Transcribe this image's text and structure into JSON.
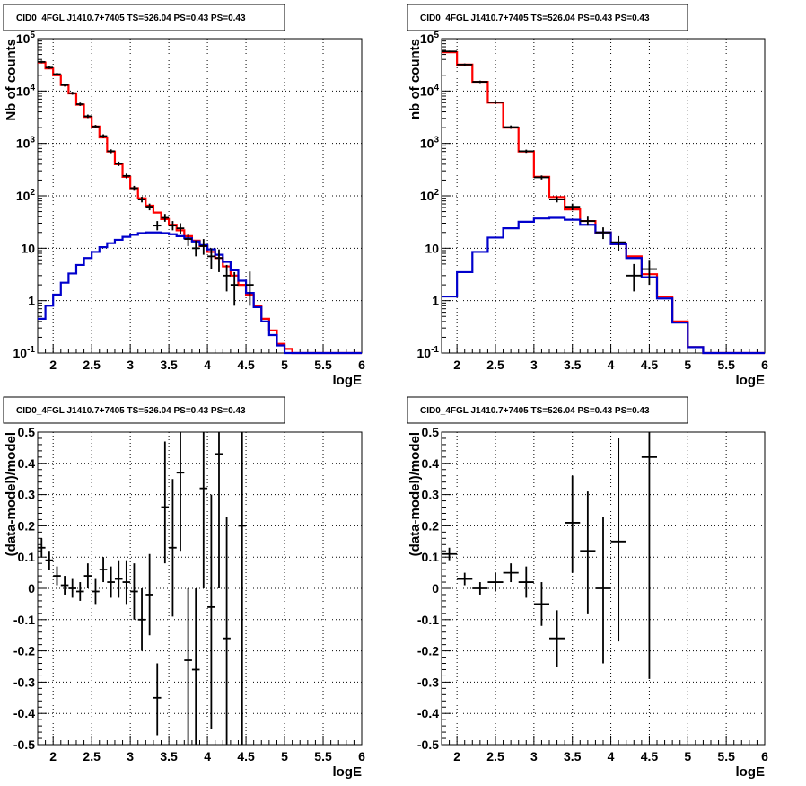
{
  "colors": {
    "data": "#000000",
    "total_model": "#ff0000",
    "source_model": "#0000cc",
    "grid": "#000000",
    "background": "#ffffff"
  },
  "chart_data": [
    {
      "type": "line",
      "title": "CID0_4FGL J1410.7+7405 TS=526.04 PS=0.43 PS=0.43",
      "xlabel": "logE",
      "ylabel": "Nb of counts",
      "xscale": "linear",
      "yscale": "log",
      "xlim": [
        1.8,
        6.0
      ],
      "ylim": [
        0.1,
        100000
      ],
      "grid": true,
      "xticks": [
        "2",
        "2.5",
        "3",
        "3.5",
        "4",
        "4.5",
        "5",
        "5.5",
        "6"
      ],
      "yticks": [
        {
          "value": 0.1,
          "base": "10",
          "exp": "-1"
        },
        {
          "value": 1,
          "label": "1"
        },
        {
          "value": 10,
          "label": "10"
        },
        {
          "value": 100,
          "base": "10",
          "exp": "2"
        },
        {
          "value": 1000,
          "base": "10",
          "exp": "3"
        },
        {
          "value": 10000,
          "base": "10",
          "exp": "4"
        },
        {
          "value": 100000,
          "base": "10",
          "exp": "5"
        }
      ],
      "bin_edges": [
        1.8,
        1.9,
        2.0,
        2.1,
        2.2,
        2.3,
        2.4,
        2.5,
        2.6,
        2.7,
        2.8,
        2.9,
        3.0,
        3.1,
        3.2,
        3.3,
        3.4,
        3.5,
        3.6,
        3.7,
        3.8,
        3.9,
        4.0,
        4.1,
        4.2,
        4.3,
        4.4,
        4.5,
        4.6,
        4.7,
        4.8,
        4.9,
        5.0,
        5.1,
        6.0
      ],
      "series": [
        {
          "role": "total_model",
          "values": [
            35000,
            27000,
            20000,
            13000,
            9000,
            5500,
            3200,
            2100,
            1300,
            700,
            400,
            230,
            140,
            90,
            65,
            48,
            36,
            28,
            22,
            17,
            14,
            11,
            8.5,
            6.5,
            4.5,
            3,
            2,
            1.3,
            0.8,
            0.45,
            0.27,
            0.15,
            0.12,
            0.1
          ]
        },
        {
          "role": "source_model",
          "values": [
            0.45,
            0.8,
            1.3,
            2.2,
            3.3,
            4.8,
            6.5,
            8.5,
            10.5,
            12.5,
            14.5,
            16.5,
            18,
            19.5,
            20,
            20,
            19.5,
            18.5,
            17,
            15.5,
            13.5,
            11.5,
            9.5,
            7.5,
            5.5,
            3.8,
            2.4,
            1.4,
            0.75,
            0.4,
            0.22,
            0.14,
            0.1,
            0.1
          ]
        },
        {
          "role": "data",
          "points": [
            {
              "x": 1.85,
              "y": 36000,
              "lo": 34000,
              "hi": 38000
            },
            {
              "x": 1.95,
              "y": 28000,
              "lo": 26500,
              "hi": 29500
            },
            {
              "x": 2.05,
              "y": 21000,
              "lo": 19800,
              "hi": 22200
            },
            {
              "x": 2.15,
              "y": 13000,
              "lo": 12200,
              "hi": 13800
            },
            {
              "x": 2.25,
              "y": 9100,
              "lo": 8500,
              "hi": 9700
            },
            {
              "x": 2.35,
              "y": 5600,
              "lo": 5200,
              "hi": 6000
            },
            {
              "x": 2.45,
              "y": 3300,
              "lo": 3050,
              "hi": 3550
            },
            {
              "x": 2.55,
              "y": 2100,
              "lo": 1950,
              "hi": 2250
            },
            {
              "x": 2.65,
              "y": 1380,
              "lo": 1270,
              "hi": 1490
            },
            {
              "x": 2.75,
              "y": 710,
              "lo": 650,
              "hi": 770
            },
            {
              "x": 2.85,
              "y": 410,
              "lo": 370,
              "hi": 450
            },
            {
              "x": 2.95,
              "y": 240,
              "lo": 215,
              "hi": 265
            },
            {
              "x": 3.05,
              "y": 140,
              "lo": 125,
              "hi": 155
            },
            {
              "x": 3.15,
              "y": 85,
              "lo": 75,
              "hi": 96
            },
            {
              "x": 3.25,
              "y": 62,
              "lo": 53,
              "hi": 71
            },
            {
              "x": 3.35,
              "y": 27,
              "lo": 22,
              "hi": 33
            },
            {
              "x": 3.45,
              "y": 38,
              "lo": 32,
              "hi": 45
            },
            {
              "x": 3.55,
              "y": 27,
              "lo": 22,
              "hi": 33
            },
            {
              "x": 3.65,
              "y": 24,
              "lo": 19,
              "hi": 30
            },
            {
              "x": 3.75,
              "y": 15,
              "lo": 11,
              "hi": 19
            },
            {
              "x": 3.85,
              "y": 10,
              "lo": 7,
              "hi": 14
            },
            {
              "x": 3.95,
              "y": 11,
              "lo": 7.5,
              "hi": 15
            },
            {
              "x": 4.05,
              "y": 7,
              "lo": 4,
              "hi": 10
            },
            {
              "x": 4.15,
              "y": 6.5,
              "lo": 3.5,
              "hi": 9.5
            },
            {
              "x": 4.25,
              "y": 3,
              "lo": 1.5,
              "hi": 4.8
            },
            {
              "x": 4.35,
              "y": 2,
              "lo": 0.8,
              "hi": 3.5
            },
            {
              "x": 4.55,
              "y": 2,
              "lo": 0.8,
              "hi": 3.6
            }
          ]
        }
      ]
    },
    {
      "type": "line",
      "title": "CID0_4FGL J1410.7+7405 TS=526.04 PS=0.43 PS=0.43",
      "xlabel": "logE",
      "ylabel": "nb of counts",
      "xscale": "linear",
      "yscale": "log",
      "xlim": [
        1.8,
        6.0
      ],
      "ylim": [
        0.1,
        100000
      ],
      "grid": true,
      "xticks": [
        "2",
        "2.5",
        "3",
        "3.5",
        "4",
        "4.5",
        "5",
        "5.5",
        "6"
      ],
      "yticks": [
        {
          "value": 0.1,
          "base": "10",
          "exp": "-1"
        },
        {
          "value": 1,
          "label": "1"
        },
        {
          "value": 10,
          "label": "10"
        },
        {
          "value": 100,
          "base": "10",
          "exp": "2"
        },
        {
          "value": 1000,
          "base": "10",
          "exp": "3"
        },
        {
          "value": 10000,
          "base": "10",
          "exp": "4"
        },
        {
          "value": 100000,
          "base": "10",
          "exp": "5"
        }
      ],
      "bin_edges": [
        1.8,
        2.0,
        2.2,
        2.4,
        2.6,
        2.8,
        3.0,
        3.2,
        3.4,
        3.6,
        3.8,
        4.0,
        4.2,
        4.4,
        4.6,
        4.8,
        5.0,
        5.2,
        6.0
      ],
      "series": [
        {
          "role": "total_model",
          "values": [
            55000,
            32000,
            15000,
            6000,
            2000,
            700,
            230,
            95,
            55,
            33,
            20,
            12,
            7,
            3.2,
            1.2,
            0.4,
            0.13,
            0.1
          ]
        },
        {
          "role": "source_model",
          "values": [
            1.2,
            3.5,
            8.5,
            16,
            24,
            32,
            37,
            38,
            35,
            28,
            20,
            12,
            6.5,
            2.8,
            1.1,
            0.38,
            0.13,
            0.1
          ]
        },
        {
          "role": "data",
          "points": [
            {
              "x": 1.9,
              "y": 57000,
              "lo": 55000,
              "hi": 59000
            },
            {
              "x": 2.1,
              "y": 32000,
              "lo": 30500,
              "hi": 33500
            },
            {
              "x": 2.3,
              "y": 15000,
              "lo": 14200,
              "hi": 15800
            },
            {
              "x": 2.5,
              "y": 6100,
              "lo": 5700,
              "hi": 6500
            },
            {
              "x": 2.7,
              "y": 2050,
              "lo": 1900,
              "hi": 2200
            },
            {
              "x": 2.9,
              "y": 710,
              "lo": 660,
              "hi": 760
            },
            {
              "x": 3.1,
              "y": 225,
              "lo": 205,
              "hi": 245
            },
            {
              "x": 3.3,
              "y": 85,
              "lo": 75,
              "hi": 96
            },
            {
              "x": 3.5,
              "y": 62,
              "lo": 53,
              "hi": 71
            },
            {
              "x": 3.7,
              "y": 33,
              "lo": 27,
              "hi": 40
            },
            {
              "x": 3.9,
              "y": 20,
              "lo": 15,
              "hi": 25
            },
            {
              "x": 4.1,
              "y": 13,
              "lo": 9,
              "hi": 17
            },
            {
              "x": 4.3,
              "y": 3,
              "lo": 1.5,
              "hi": 5
            },
            {
              "x": 4.5,
              "y": 4,
              "lo": 2,
              "hi": 6
            }
          ]
        }
      ]
    },
    {
      "type": "scatter",
      "title": "CID0_4FGL J1410.7+7405 TS=526.04 PS=0.43 PS=0.43",
      "xlabel": "logE",
      "ylabel": "(data-model)/model",
      "xscale": "linear",
      "yscale": "linear",
      "xlim": [
        1.8,
        6.0
      ],
      "ylim": [
        -0.5,
        0.5
      ],
      "grid": true,
      "xticks": [
        "2",
        "2.5",
        "3",
        "3.5",
        "4",
        "4.5",
        "5",
        "5.5",
        "6"
      ],
      "yticks": [
        "-0.5",
        "-0.4",
        "-0.3",
        "-0.2",
        "-0.1",
        "0",
        "0.1",
        "0.2",
        "0.3",
        "0.4",
        "0.5"
      ],
      "bin_half_width": 0.05,
      "series": [
        {
          "role": "data",
          "points": [
            {
              "x": 1.85,
              "y": 0.13,
              "lo": 0.1,
              "hi": 0.16
            },
            {
              "x": 1.95,
              "y": 0.09,
              "lo": 0.06,
              "hi": 0.12
            },
            {
              "x": 2.05,
              "y": 0.04,
              "lo": 0.01,
              "hi": 0.07
            },
            {
              "x": 2.15,
              "y": 0.01,
              "lo": -0.02,
              "hi": 0.04
            },
            {
              "x": 2.25,
              "y": 0.0,
              "lo": -0.03,
              "hi": 0.03
            },
            {
              "x": 2.35,
              "y": -0.01,
              "lo": -0.04,
              "hi": 0.02
            },
            {
              "x": 2.45,
              "y": 0.04,
              "lo": 0.0,
              "hi": 0.08
            },
            {
              "x": 2.55,
              "y": -0.01,
              "lo": -0.05,
              "hi": 0.03
            },
            {
              "x": 2.65,
              "y": 0.06,
              "lo": 0.02,
              "hi": 0.1
            },
            {
              "x": 2.75,
              "y": 0.02,
              "lo": -0.03,
              "hi": 0.07
            },
            {
              "x": 2.85,
              "y": 0.03,
              "lo": -0.03,
              "hi": 0.09
            },
            {
              "x": 2.95,
              "y": 0.02,
              "lo": -0.05,
              "hi": 0.09
            },
            {
              "x": 3.05,
              "y": -0.01,
              "lo": -0.1,
              "hi": 0.08
            },
            {
              "x": 3.15,
              "y": -0.1,
              "lo": -0.2,
              "hi": 0.0
            },
            {
              "x": 3.25,
              "y": -0.02,
              "lo": -0.15,
              "hi": 0.11
            },
            {
              "x": 3.35,
              "y": -0.35,
              "lo": -0.47,
              "hi": -0.24
            },
            {
              "x": 3.45,
              "y": 0.26,
              "lo": 0.08,
              "hi": 0.47
            },
            {
              "x": 3.55,
              "y": 0.13,
              "lo": -0.09,
              "hi": 0.35
            },
            {
              "x": 3.65,
              "y": 0.37,
              "lo": 0.12,
              "hi": 0.5
            },
            {
              "x": 3.75,
              "y": -0.23,
              "lo": -0.5,
              "hi": 0.0
            },
            {
              "x": 3.85,
              "y": -0.26,
              "lo": -0.5,
              "hi": 0.0
            },
            {
              "x": 3.95,
              "y": 0.32,
              "lo": 0.0,
              "hi": 0.5
            },
            {
              "x": 4.05,
              "y": -0.06,
              "lo": -0.45,
              "hi": 0.3
            },
            {
              "x": 4.15,
              "y": 0.43,
              "lo": 0.0,
              "hi": 0.5
            },
            {
              "x": 4.25,
              "y": -0.16,
              "lo": -0.5,
              "hi": 0.23
            },
            {
              "x": 4.45,
              "y": 0.2,
              "lo": -0.5,
              "hi": 0.5
            }
          ]
        }
      ]
    },
    {
      "type": "scatter",
      "title": "CID0_4FGL J1410.7+7405 TS=526.04 PS=0.43 PS=0.43",
      "xlabel": "logE",
      "ylabel": "(data-model)/model",
      "xscale": "linear",
      "yscale": "linear",
      "xlim": [
        1.8,
        6.0
      ],
      "ylim": [
        -0.5,
        0.5
      ],
      "grid": true,
      "xticks": [
        "2",
        "2.5",
        "3",
        "3.5",
        "4",
        "4.5",
        "5",
        "5.5",
        "6"
      ],
      "yticks": [
        "-0.5",
        "-0.4",
        "-0.3",
        "-0.2",
        "-0.1",
        "0",
        "0.1",
        "0.2",
        "0.3",
        "0.4",
        "0.5"
      ],
      "bin_half_width": 0.1,
      "series": [
        {
          "role": "data",
          "points": [
            {
              "x": 1.9,
              "y": 0.11,
              "lo": 0.09,
              "hi": 0.13
            },
            {
              "x": 2.1,
              "y": 0.03,
              "lo": 0.01,
              "hi": 0.05
            },
            {
              "x": 2.3,
              "y": 0.0,
              "lo": -0.02,
              "hi": 0.02
            },
            {
              "x": 2.5,
              "y": 0.02,
              "lo": -0.01,
              "hi": 0.05
            },
            {
              "x": 2.7,
              "y": 0.05,
              "lo": 0.02,
              "hi": 0.08
            },
            {
              "x": 2.9,
              "y": 0.02,
              "lo": -0.03,
              "hi": 0.07
            },
            {
              "x": 3.1,
              "y": -0.05,
              "lo": -0.12,
              "hi": 0.02
            },
            {
              "x": 3.3,
              "y": -0.16,
              "lo": -0.25,
              "hi": -0.07
            },
            {
              "x": 3.5,
              "y": 0.21,
              "lo": 0.05,
              "hi": 0.36
            },
            {
              "x": 3.7,
              "y": 0.12,
              "lo": -0.08,
              "hi": 0.31
            },
            {
              "x": 3.9,
              "y": 0.0,
              "lo": -0.24,
              "hi": 0.23
            },
            {
              "x": 4.1,
              "y": 0.15,
              "lo": -0.17,
              "hi": 0.48
            },
            {
              "x": 4.5,
              "y": 0.42,
              "lo": -0.29,
              "hi": 0.5
            }
          ]
        }
      ]
    }
  ]
}
